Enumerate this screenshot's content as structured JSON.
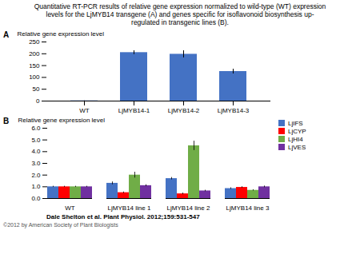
{
  "title": "Quantitative RT-PCR results of relative gene expression normalized to wild-type (WT) expression\nlevels for the LjMYB14 transgene (A) and genes specific for isoflavonoid biosynthesis up-\nregulated in transgenic lines (B).",
  "annotations": [
    "Dale Shelton et al. Plant Physiol. 2012;159:531-547",
    "©2012 by American Society of Plant Biologists"
  ],
  "chart_data": [
    {
      "type": "bar",
      "annotations": [
        "A"
      ],
      "categories": [
        "WT",
        "LjMYB14-1",
        "LjMYB14-2",
        "LjMYB14-3"
      ],
      "values": [
        1,
        205,
        198,
        125
      ],
      "errors": [
        0.5,
        8,
        15,
        10
      ],
      "color": "#4472C4",
      "ylabel": "Relative gene expression level",
      "ylim": [
        0,
        250
      ],
      "yticks": [
        0,
        50,
        100,
        150,
        200,
        250
      ]
    },
    {
      "type": "bar",
      "annotations": [
        "B"
      ],
      "categories": [
        "WT",
        "LjMYB14 line 1",
        "LjMYB14 line 2",
        "LjMYB14 line 3"
      ],
      "series": [
        {
          "name": "LjIFS",
          "color": "#4472C4",
          "values": [
            1,
            1.3,
            1.7,
            0.85
          ],
          "errors": [
            0.05,
            0.12,
            0.1,
            0.07
          ]
        },
        {
          "name": "LjCYP",
          "color": "#FF0000",
          "values": [
            1,
            0.5,
            0.4,
            0.95
          ],
          "errors": [
            0.05,
            0.06,
            0.07,
            0.06
          ]
        },
        {
          "name": "LjHI4",
          "color": "#70AD47",
          "values": [
            1,
            2.0,
            4.5,
            0.7
          ],
          "errors": [
            0.05,
            0.25,
            0.4,
            0.05
          ]
        },
        {
          "name": "LjVES",
          "color": "#7030A0",
          "values": [
            1,
            1.1,
            0.65,
            1.0
          ],
          "errors": [
            0.05,
            0.08,
            0.06,
            0.07
          ]
        }
      ],
      "legend": "right",
      "ylabel": "Relative gene expression level",
      "ylim": [
        0,
        6
      ],
      "yticks": [
        0,
        1,
        2,
        3,
        4,
        5,
        6
      ]
    }
  ]
}
